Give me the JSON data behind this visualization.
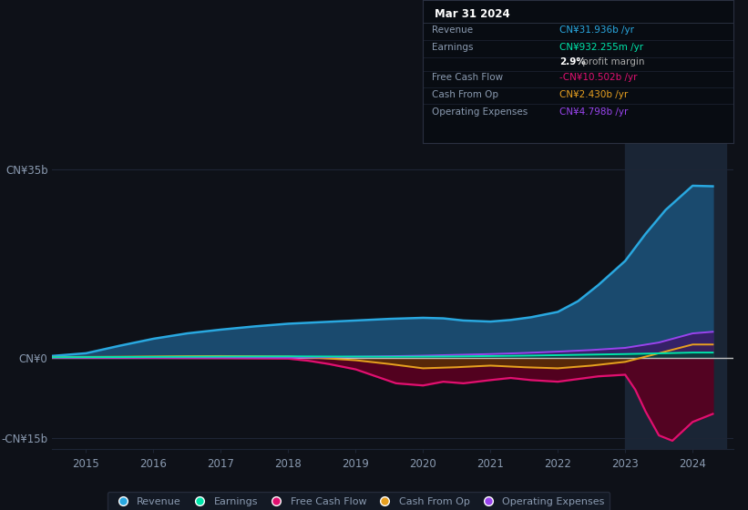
{
  "bg_color": "#0e1118",
  "plot_bg_color": "#0e1118",
  "grid_color": "#1e2535",
  "zero_line_color": "#c0c0c0",
  "ylim": [
    -17,
    40
  ],
  "xlim": [
    2014.5,
    2024.6
  ],
  "ytick_labels": [
    "CN¥35b",
    "CN¥0",
    "-CN¥15b"
  ],
  "ytick_values": [
    35,
    0,
    -15
  ],
  "xticks": [
    2015,
    2016,
    2017,
    2018,
    2019,
    2020,
    2021,
    2022,
    2023,
    2024
  ],
  "series": {
    "Revenue": {
      "color": "#29A8E0",
      "fill_color": "#1A4A6E",
      "years": [
        2014.5,
        2015.0,
        2015.5,
        2016.0,
        2016.5,
        2017.0,
        2017.5,
        2018.0,
        2018.5,
        2019.0,
        2019.5,
        2020.0,
        2020.3,
        2020.6,
        2021.0,
        2021.3,
        2021.6,
        2022.0,
        2022.3,
        2022.6,
        2023.0,
        2023.3,
        2023.6,
        2024.0,
        2024.3
      ],
      "values": [
        0.3,
        0.8,
        2.2,
        3.5,
        4.5,
        5.2,
        5.8,
        6.3,
        6.6,
        6.9,
        7.2,
        7.4,
        7.3,
        6.9,
        6.7,
        7.0,
        7.5,
        8.5,
        10.5,
        13.5,
        18.0,
        23.0,
        27.5,
        32.0,
        31.9
      ]
    },
    "Earnings": {
      "color": "#00E5AA",
      "fill_color": "#004433",
      "years": [
        2014.5,
        2015.0,
        2015.5,
        2016.0,
        2016.5,
        2017.0,
        2017.5,
        2018.0,
        2018.5,
        2019.0,
        2019.5,
        2020.0,
        2020.5,
        2021.0,
        2021.5,
        2022.0,
        2022.5,
        2023.0,
        2023.5,
        2024.0,
        2024.3
      ],
      "values": [
        0.05,
        0.08,
        0.1,
        0.12,
        0.15,
        0.18,
        0.2,
        0.22,
        0.2,
        0.18,
        0.15,
        0.18,
        0.22,
        0.28,
        0.35,
        0.45,
        0.55,
        0.65,
        0.78,
        0.93,
        0.93
      ]
    },
    "FreeCashFlow": {
      "color": "#E01070",
      "fill_color": "#5A0020",
      "years": [
        2014.5,
        2015.0,
        2015.5,
        2016.0,
        2016.5,
        2017.0,
        2017.5,
        2018.0,
        2018.3,
        2018.6,
        2019.0,
        2019.3,
        2019.6,
        2020.0,
        2020.3,
        2020.6,
        2021.0,
        2021.3,
        2021.6,
        2022.0,
        2022.3,
        2022.6,
        2023.0,
        2023.15,
        2023.3,
        2023.5,
        2023.7,
        2024.0,
        2024.3
      ],
      "values": [
        0.0,
        0.0,
        0.0,
        -0.05,
        -0.08,
        -0.1,
        -0.15,
        -0.2,
        -0.6,
        -1.2,
        -2.2,
        -3.5,
        -4.8,
        -5.2,
        -4.5,
        -4.8,
        -4.2,
        -3.8,
        -4.2,
        -4.5,
        -4.0,
        -3.5,
        -3.2,
        -6.0,
        -10.0,
        -14.5,
        -15.5,
        -12.0,
        -10.5
      ]
    },
    "CashFromOp": {
      "color": "#E8A020",
      "fill_color": "#5A3A00",
      "years": [
        2014.5,
        2015.0,
        2015.5,
        2016.0,
        2016.5,
        2017.0,
        2017.5,
        2018.0,
        2018.5,
        2019.0,
        2019.5,
        2020.0,
        2020.5,
        2021.0,
        2021.5,
        2022.0,
        2022.5,
        2023.0,
        2023.5,
        2024.0,
        2024.3
      ],
      "values": [
        0.1,
        0.12,
        0.15,
        0.2,
        0.25,
        0.28,
        0.25,
        0.2,
        -0.1,
        -0.5,
        -1.2,
        -2.0,
        -1.8,
        -1.5,
        -1.8,
        -2.0,
        -1.5,
        -0.8,
        0.8,
        2.43,
        2.43
      ]
    },
    "OperatingExpenses": {
      "color": "#9944EE",
      "fill_color": "#3A1A66",
      "years": [
        2014.5,
        2015.0,
        2015.5,
        2016.0,
        2016.5,
        2017.0,
        2017.5,
        2018.0,
        2018.5,
        2019.0,
        2019.5,
        2020.0,
        2020.5,
        2021.0,
        2021.5,
        2022.0,
        2022.5,
        2023.0,
        2023.5,
        2024.0,
        2024.3
      ],
      "values": [
        0.0,
        0.0,
        0.0,
        0.0,
        0.0,
        0.0,
        0.0,
        0.0,
        0.05,
        0.15,
        0.25,
        0.35,
        0.5,
        0.65,
        0.85,
        1.1,
        1.4,
        1.8,
        2.8,
        4.5,
        4.8
      ]
    }
  },
  "highlight_x_start": 2023.0,
  "highlight_x_end": 2024.5,
  "highlight_color": "#1a2535",
  "text_color": "#8a9ab0",
  "info_box": {
    "title": "Mar 31 2024",
    "title_color": "#ffffff",
    "bg_color": "#080c12",
    "border_color": "#2a3040",
    "rows": [
      {
        "label": "Revenue",
        "value": "CN¥31.936b /yr",
        "value_color": "#29A8E0",
        "label_color": "#8a9ab0"
      },
      {
        "label": "Earnings",
        "value": "CN¥932.255m /yr",
        "value_color": "#00E5AA",
        "label_color": "#8a9ab0"
      },
      {
        "label": "",
        "value": "2.9% profit margin",
        "value_color": "#cccccc",
        "label_color": "#8a9ab0",
        "bold_part": "2.9%"
      },
      {
        "label": "Free Cash Flow",
        "value": "-CN¥10.502b /yr",
        "value_color": "#E01070",
        "label_color": "#8a9ab0"
      },
      {
        "label": "Cash From Op",
        "value": "CN¥2.430b /yr",
        "value_color": "#E8A020",
        "label_color": "#8a9ab0"
      },
      {
        "label": "Operating Expenses",
        "value": "CN¥4.798b /yr",
        "value_color": "#9944EE",
        "label_color": "#8a9ab0"
      }
    ]
  },
  "legend": [
    {
      "label": "Revenue",
      "color": "#29A8E0"
    },
    {
      "label": "Earnings",
      "color": "#00E5AA"
    },
    {
      "label": "Free Cash Flow",
      "color": "#E01070"
    },
    {
      "label": "Cash From Op",
      "color": "#E8A020"
    },
    {
      "label": "Operating Expenses",
      "color": "#9944EE"
    }
  ]
}
